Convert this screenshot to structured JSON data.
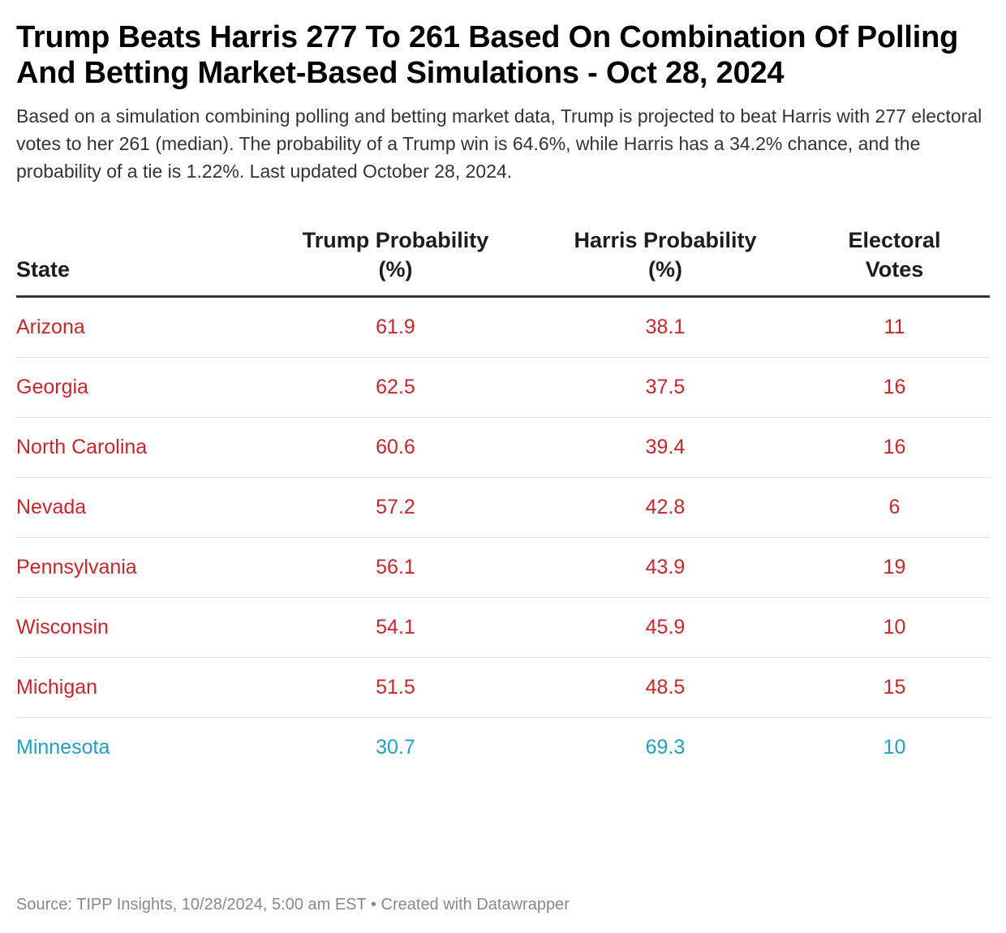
{
  "title": "Trump Beats Harris 277 To 261 Based On Combination Of Polling And Betting Market-Based Simulations - Oct 28, 2024",
  "description": "Based on a simulation combining polling and betting market data, Trump is projected to beat Harris with 277 electoral votes to her 261 (median). The probability of a Trump win is 64.6%, while Harris has a 34.2% chance, and the probability of a tie is 1.22%. Last updated October 28, 2024.",
  "footer": {
    "source": "Source: TIPP Insights, 10/28/2024, 5:00 am EST",
    "separator": "•",
    "credit": "Created with Datawrapper"
  },
  "colors": {
    "trump_lean": "#c8262b",
    "harris_lean": "#1f9fc7"
  },
  "chart_data": {
    "type": "table",
    "columns": [
      "State",
      "Trump Probability (%)",
      "Harris Probability (%)",
      "Electoral Votes"
    ],
    "rows": [
      {
        "state": "Arizona",
        "trump": "61.9",
        "harris": "38.1",
        "votes": "11",
        "lean": "trump"
      },
      {
        "state": "Georgia",
        "trump": "62.5",
        "harris": "37.5",
        "votes": "16",
        "lean": "trump"
      },
      {
        "state": "North Carolina",
        "trump": "60.6",
        "harris": "39.4",
        "votes": "16",
        "lean": "trump"
      },
      {
        "state": "Nevada",
        "trump": "57.2",
        "harris": "42.8",
        "votes": "6",
        "lean": "trump"
      },
      {
        "state": "Pennsylvania",
        "trump": "56.1",
        "harris": "43.9",
        "votes": "19",
        "lean": "trump"
      },
      {
        "state": "Wisconsin",
        "trump": "54.1",
        "harris": "45.9",
        "votes": "10",
        "lean": "trump"
      },
      {
        "state": "Michigan",
        "trump": "51.5",
        "harris": "48.5",
        "votes": "15",
        "lean": "trump"
      },
      {
        "state": "Minnesota",
        "trump": "30.7",
        "harris": "69.3",
        "votes": "10",
        "lean": "harris"
      }
    ]
  }
}
